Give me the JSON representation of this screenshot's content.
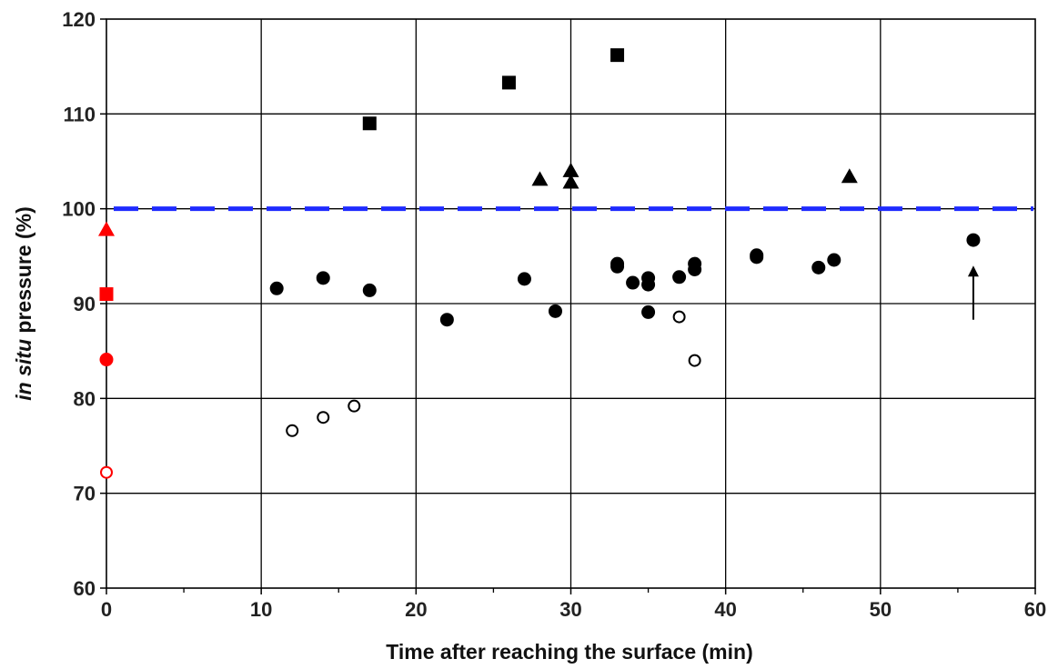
{
  "chart_data": {
    "type": "scatter",
    "xlabel": "Time after reaching the surface (min)",
    "ylabel_italic": "in situ",
    "ylabel_rest": " pressure (%)",
    "xlim": [
      0,
      60
    ],
    "ylim": [
      60,
      120
    ],
    "x_ticks": [
      0,
      10,
      20,
      30,
      40,
      50,
      60
    ],
    "y_ticks": [
      60,
      70,
      80,
      90,
      100,
      110,
      120
    ],
    "x_minor_step": 5,
    "grid": true,
    "reference_line": {
      "y": 100,
      "style": "dashed",
      "color": "#1f2bff"
    },
    "colors": {
      "black": "#000000",
      "red": "#ff0000",
      "reference": "#1f2bff"
    },
    "series": [
      {
        "marker": "square",
        "fill": "filled",
        "color": "#000000",
        "points": [
          [
            17,
            109
          ],
          [
            26,
            113.3
          ],
          [
            33,
            116.2
          ]
        ]
      },
      {
        "marker": "triangle",
        "fill": "filled",
        "color": "#000000",
        "points": [
          [
            28,
            103.1
          ],
          [
            30,
            104
          ],
          [
            30,
            102.8
          ],
          [
            48,
            103.4
          ]
        ]
      },
      {
        "marker": "circle",
        "fill": "filled",
        "color": "#000000",
        "points": [
          [
            11,
            91.6
          ],
          [
            14,
            92.7
          ],
          [
            17,
            91.4
          ],
          [
            22,
            88.3
          ],
          [
            27,
            92.6
          ],
          [
            29,
            89.2
          ],
          [
            33,
            94.2
          ],
          [
            33,
            93.9
          ],
          [
            34,
            92.2
          ],
          [
            35,
            92.7
          ],
          [
            35,
            92
          ],
          [
            35,
            89.1
          ],
          [
            37,
            92.8
          ],
          [
            38,
            94.2
          ],
          [
            38,
            93.6
          ],
          [
            42,
            95.1
          ],
          [
            42,
            94.9
          ],
          [
            46,
            93.8
          ],
          [
            47,
            94.6
          ],
          [
            56,
            96.7
          ]
        ]
      },
      {
        "marker": "circle",
        "fill": "open",
        "color": "#000000",
        "points": [
          [
            12,
            76.6
          ],
          [
            14,
            78
          ],
          [
            16,
            79.2
          ],
          [
            37,
            88.6
          ],
          [
            38,
            84
          ]
        ]
      },
      {
        "marker": "triangle",
        "fill": "filled",
        "color": "#ff0000",
        "points": [
          [
            0,
            97.8
          ]
        ]
      },
      {
        "marker": "square",
        "fill": "filled",
        "color": "#ff0000",
        "points": [
          [
            0,
            91
          ]
        ]
      },
      {
        "marker": "circle",
        "fill": "filled",
        "color": "#ff0000",
        "points": [
          [
            0,
            84.1
          ]
        ]
      },
      {
        "marker": "circle",
        "fill": "open",
        "color": "#ff0000",
        "points": [
          [
            0,
            72.2
          ]
        ]
      }
    ],
    "annotations": [
      {
        "type": "arrow",
        "x": 56,
        "y_from": 88.3,
        "y_to": 94,
        "color": "#000000"
      }
    ]
  }
}
